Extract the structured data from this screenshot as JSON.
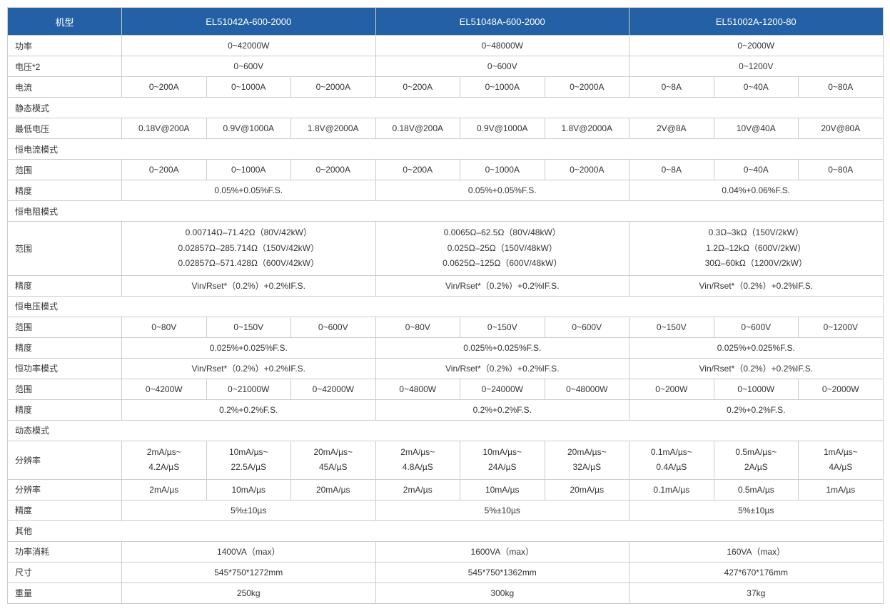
{
  "colors": {
    "header_bg": "#2360a5",
    "header_text": "#ffffff",
    "border": "#cccccc",
    "text": "#333333"
  },
  "header": {
    "model_label": "机型",
    "models": [
      "EL51042A-600-2000",
      "EL51048A-600-2000",
      "EL51002A-1200-80"
    ]
  },
  "rows": {
    "power": {
      "label": "功率",
      "vals": [
        "0~42000W",
        "0~48000W",
        "0~2000W"
      ]
    },
    "voltage": {
      "label": "电压*2",
      "vals": [
        "0~600V",
        "0~600V",
        "0~1200V"
      ]
    },
    "current": {
      "label": "电流",
      "vals": [
        "0~200A",
        "0~1000A",
        "0~2000A",
        "0~200A",
        "0~1000A",
        "0~2000A",
        "0~8A",
        "0~40A",
        "0~80A"
      ]
    },
    "static_mode": "静态模式",
    "min_voltage": {
      "label": "最低电压",
      "vals": [
        "0.18V@200A",
        "0.9V@1000A",
        "1.8V@2000A",
        "0.18V@200A",
        "0.9V@1000A",
        "1.8V@2000A",
        "2V@8A",
        "10V@40A",
        "20V@80A"
      ]
    },
    "cc_mode": "恒电流模式",
    "cc_range": {
      "label": "范围",
      "vals": [
        "0~200A",
        "0~1000A",
        "0~2000A",
        "0~200A",
        "0~1000A",
        "0~2000A",
        "0~8A",
        "0~40A",
        "0~80A"
      ]
    },
    "cc_acc": {
      "label": "精度",
      "vals": [
        "0.05%+0.05%F.S.",
        "0.05%+0.05%F.S.",
        "0.04%+0.06%F.S."
      ]
    },
    "cr_mode": "恒电阻模式",
    "cr_range": {
      "label": "范围",
      "lines": {
        "a1": "0.00714Ω–71.42Ω（80V/42kW）",
        "b1": "0.0065Ω–62.5Ω（80V/48kW）",
        "c1": "0.3Ω–3kΩ（150V/2kW）",
        "a2": "0.02857Ω–285.714Ω（150V/42kW）",
        "b2": "0.025Ω–25Ω（150V/48kW）",
        "c2": "1.2Ω–12kΩ（600V/2kW）",
        "a3": "0.02857Ω–571.428Ω（600V/42kW）",
        "b3": "0.0625Ω–125Ω（600V/48kW）",
        "c3": "30Ω–60kΩ（1200V/2kW）"
      }
    },
    "cr_acc": {
      "label": "精度",
      "val": "Vin/Rset*（0.2%）+0.2%IF.S."
    },
    "cv_mode": "恒电压模式",
    "cv_range": {
      "label": "范围",
      "vals": [
        "0~80V",
        "0~150V",
        "0~600V",
        "0~80V",
        "0~150V",
        "0~600V",
        "0~150V",
        "0~600V",
        "0~1200V"
      ]
    },
    "cv_acc": {
      "label": "精度",
      "vals": [
        "0.025%+0.025%F.S.",
        "0.025%+0.025%F.S.",
        "0.025%+0.025%F.S."
      ]
    },
    "cp_mode": {
      "label": "恒功率模式",
      "vals": [
        "Vin/Rset*（0.2%）+0.2%IF.S.",
        "Vin/Rset*（0.2%）+0.2%IF.S.",
        "Vin/Rset*（0.2%）+0.2%IF.S."
      ]
    },
    "cp_range": {
      "label": "范围",
      "vals": [
        "0~4200W",
        "0~21000W",
        "0~42000W",
        "0~4800W",
        "0~24000W",
        "0~48000W",
        "0~200W",
        "0~1000W",
        "0~2000W"
      ]
    },
    "cp_acc": {
      "label": "精度",
      "vals": [
        "0.2%+0.2%F.S.",
        "0.2%+0.2%F.S.",
        "0.2%+0.2%F.S."
      ]
    },
    "dyn_mode": "动态模式",
    "dyn_res1": {
      "label": "分辨率",
      "top": [
        "2mA/µs~",
        "10mA/µs~",
        "20mA/µs~",
        "2mA/µs~",
        "10mA/µs~",
        "20mA/µs~",
        "0.1mA/µs~",
        "0.5mA/µs~",
        "1mA/µs~"
      ],
      "bot": [
        "4.2A/µS",
        "22.5A/µS",
        "45A/µS",
        "4.8A/µS",
        "24A/µS",
        "32A/µS",
        "0.4A/µS",
        "2A/µS",
        "4A/µS"
      ]
    },
    "dyn_res2": {
      "label": "分辨率",
      "vals": [
        "2mA/µs",
        "10mA/µs",
        "20mA/µs",
        "2mA/µs",
        "10mA/µs",
        "20mA/µs",
        "0.1mA/µs",
        "0.5mA/µs",
        "1mA/µs"
      ]
    },
    "dyn_acc": {
      "label": "精度",
      "vals": [
        "5%±10µs",
        "5%±10µs",
        "5%±10µs"
      ]
    },
    "other": "其他",
    "consump": {
      "label": "功率消耗",
      "vals": [
        "1400VA（max）",
        "1600VA（max）",
        "160VA（max）"
      ]
    },
    "size": {
      "label": "尺寸",
      "vals": [
        "545*750*1272mm",
        "545*750*1362mm",
        "427*670*176mm"
      ]
    },
    "weight": {
      "label": "重量",
      "vals": [
        "250kg",
        "300kg",
        "37kg"
      ]
    }
  }
}
